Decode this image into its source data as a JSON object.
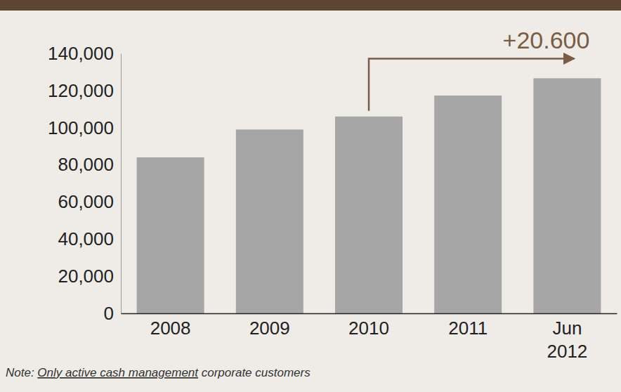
{
  "chart_data": {
    "type": "bar",
    "categories": [
      "2008",
      "2009",
      "2010",
      "2011",
      "Jun 2012"
    ],
    "values": [
      84000,
      99000,
      106000,
      117300,
      126600
    ],
    "color": "#a6a6a6",
    "ylim": [
      0,
      140000
    ],
    "yticks": [
      0,
      {
        "value": 20000,
        "label": "20,000"
      },
      {
        "value": 40000,
        "label": "40,000"
      },
      {
        "value": 60000,
        "label": "60,000"
      },
      {
        "value": 80000,
        "label": "80,000"
      },
      {
        "value": 100000,
        "label": "100,000"
      },
      {
        "value": 120000,
        "label": "120,000"
      },
      {
        "value": 140000,
        "label": "140,000"
      }
    ],
    "grid": false,
    "annotation": "+20.600",
    "note": [
      "Note: ",
      "Only active cash management",
      " corporate customers"
    ]
  }
}
